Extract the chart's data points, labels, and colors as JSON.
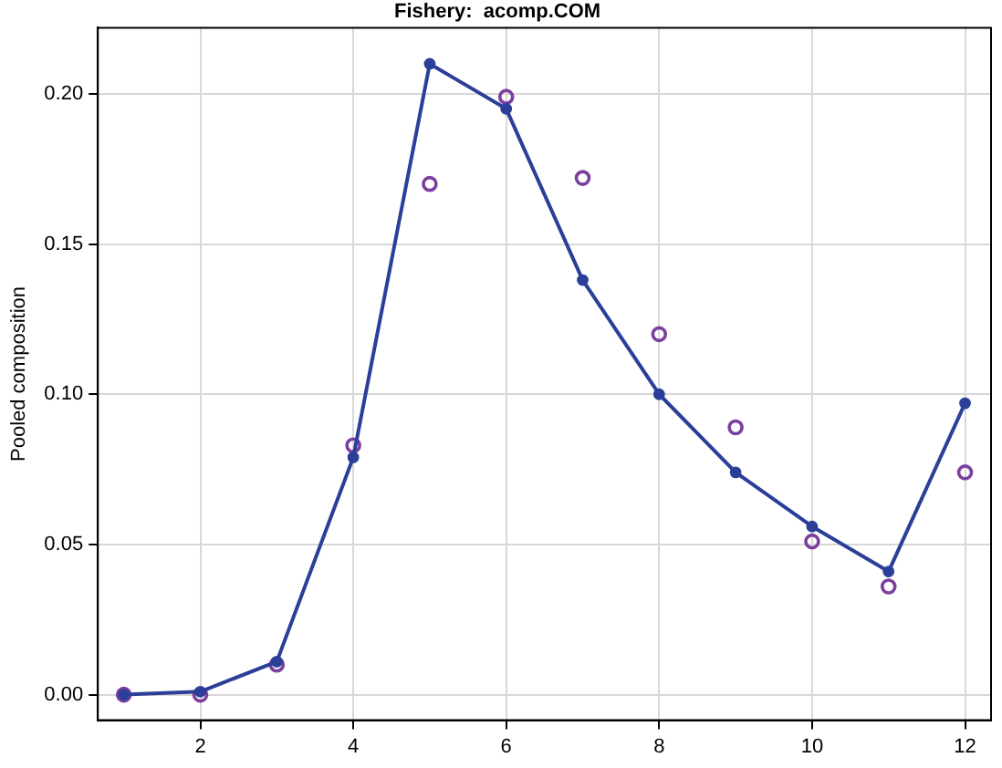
{
  "chart_data": {
    "type": "line",
    "title": "Fishery:  acomp.COM",
    "ylabel": "Pooled composition",
    "x": [
      1,
      2,
      3,
      4,
      5,
      6,
      7,
      8,
      9,
      10,
      11,
      12
    ],
    "series": [
      {
        "type": "scatter",
        "color": "#7b3f9e",
        "marker": "circle",
        "values": [
          0,
          0,
          0.01,
          0.083,
          0.17,
          0.199,
          0.172,
          0.12,
          0.089,
          0.051,
          0.036,
          0.074
        ]
      },
      {
        "type": "line",
        "color": "#2b3f99",
        "marker": "circle",
        "values": [
          0,
          0.001,
          0.011,
          0.079,
          0.21,
          0.195,
          0.138,
          0.1,
          0.074,
          0.056,
          0.041,
          0.097
        ]
      }
    ],
    "xlim": [
      0.66,
      12.34
    ],
    "xticks": [
      2,
      4,
      6,
      8,
      10,
      12
    ],
    "ylim": [
      -0.0085,
      0.222
    ],
    "yticks": [
      {
        "value": 0,
        "label": "0.00"
      },
      {
        "value": 0.05,
        "label": "0.05"
      },
      {
        "value": 0.1,
        "label": "0.10"
      },
      {
        "value": 0.15,
        "label": "0.15"
      },
      {
        "value": 0.2,
        "label": "0.20"
      }
    ],
    "grid": true,
    "line_style": "solid"
  }
}
